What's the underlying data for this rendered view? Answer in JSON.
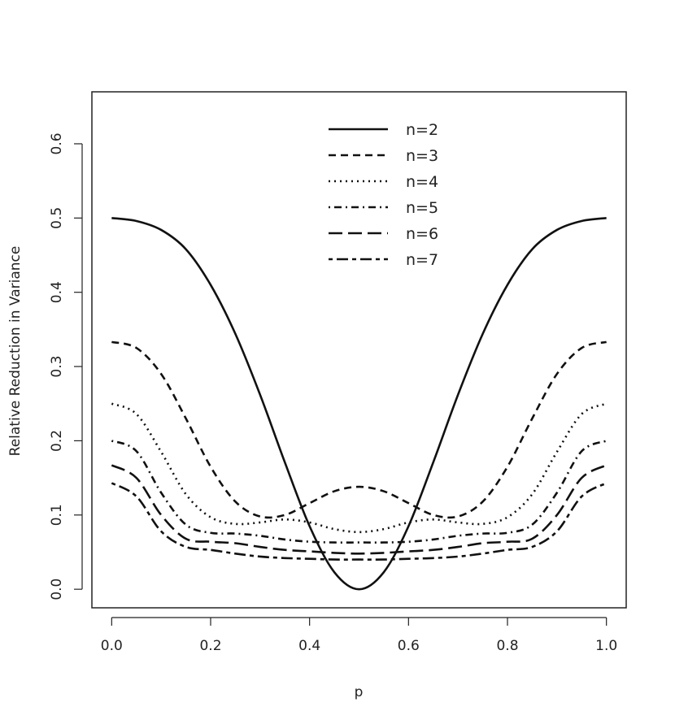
{
  "chart_data": {
    "type": "line",
    "xlabel": "p",
    "ylabel": "Relative Reduction in Variance",
    "xlim": [
      -0.04,
      1.04
    ],
    "ylim": [
      -0.025,
      0.67
    ],
    "x_ticks": [
      "0.0",
      "0.2",
      "0.4",
      "0.6",
      "0.8",
      "1.0"
    ],
    "y_ticks": [
      "0.0",
      "0.1",
      "0.2",
      "0.3",
      "0.4",
      "0.5",
      "0.6"
    ],
    "legend_position": "top-center",
    "grid": false,
    "x": [
      0.0,
      0.05,
      0.1,
      0.15,
      0.2,
      0.25,
      0.3,
      0.35,
      0.4,
      0.45,
      0.5,
      0.55,
      0.6,
      0.65,
      0.7,
      0.75,
      0.8,
      0.85,
      0.9,
      0.95,
      1.0
    ],
    "series": [
      {
        "name": "n=2",
        "dash": "solid",
        "values": [
          0.5,
          0.496,
          0.484,
          0.458,
          0.41,
          0.344,
          0.262,
          0.171,
          0.085,
          0.023,
          0.0,
          0.023,
          0.085,
          0.171,
          0.262,
          0.344,
          0.41,
          0.458,
          0.484,
          0.496,
          0.5
        ]
      },
      {
        "name": "n=3",
        "dash": "dashed",
        "values": [
          0.333,
          0.325,
          0.29,
          0.23,
          0.165,
          0.118,
          0.098,
          0.1,
          0.116,
          0.132,
          0.138,
          0.132,
          0.116,
          0.1,
          0.098,
          0.118,
          0.165,
          0.23,
          0.29,
          0.325,
          0.333
        ]
      },
      {
        "name": "n=4",
        "dash": "dotted",
        "values": [
          0.25,
          0.236,
          0.185,
          0.128,
          0.097,
          0.088,
          0.09,
          0.094,
          0.09,
          0.081,
          0.077,
          0.081,
          0.09,
          0.094,
          0.09,
          0.088,
          0.097,
          0.128,
          0.185,
          0.236,
          0.25
        ]
      },
      {
        "name": "n=5",
        "dash": "dotdash",
        "values": [
          0.2,
          0.186,
          0.13,
          0.087,
          0.076,
          0.075,
          0.072,
          0.067,
          0.064,
          0.063,
          0.063,
          0.063,
          0.064,
          0.067,
          0.072,
          0.075,
          0.076,
          0.087,
          0.13,
          0.186,
          0.2
        ]
      },
      {
        "name": "n=6",
        "dash": "longdash",
        "values": [
          0.167,
          0.15,
          0.1,
          0.068,
          0.064,
          0.062,
          0.057,
          0.053,
          0.051,
          0.049,
          0.048,
          0.049,
          0.051,
          0.053,
          0.057,
          0.062,
          0.064,
          0.068,
          0.1,
          0.15,
          0.167
        ]
      },
      {
        "name": "n=7",
        "dash": "twodash",
        "values": [
          0.143,
          0.125,
          0.078,
          0.057,
          0.053,
          0.048,
          0.044,
          0.042,
          0.041,
          0.04,
          0.04,
          0.04,
          0.041,
          0.042,
          0.044,
          0.048,
          0.053,
          0.057,
          0.078,
          0.125,
          0.143
        ]
      }
    ]
  }
}
